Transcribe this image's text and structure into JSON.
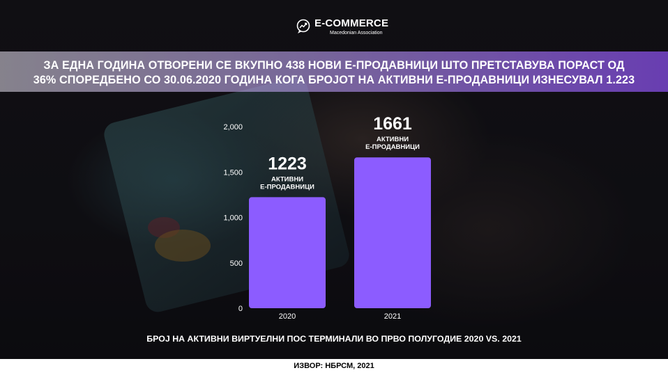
{
  "logo": {
    "title": "E-COMMERCE",
    "subtitle": "Macedonian Association",
    "icon": "chat-bubble-growth-icon"
  },
  "headline": {
    "line1": "ЗА ЕДНА ГОДИНА ОТВОРЕНИ СЕ ВКУПНО 438 НОВИ Е-ПРОДАВНИЦИ ШТО ПРЕТСТАВУВА ПОРАСТ ОД",
    "line2": "36% СПОРЕДБЕНО СО 30.06.2020 ГОДИНА КОГА БРОЈОТ НА АКТИВНИ Е-ПРОДАВНИЦИ ИЗНЕСУВАЛ 1.223"
  },
  "chart_data": {
    "type": "bar",
    "categories": [
      "2020",
      "2021"
    ],
    "values": [
      1223,
      1661
    ],
    "value_labels": [
      "1223",
      "1661"
    ],
    "bar_captions": [
      [
        "АКТИВНИ",
        "Е-ПРОДАВНИЦИ"
      ],
      [
        "АКТИВНИ",
        "Е-ПРОДАВНИЦИ"
      ]
    ],
    "ylim": [
      0,
      2000
    ],
    "yticks": [
      0,
      500,
      1000,
      1500,
      2000
    ],
    "ytick_labels": [
      "0",
      "500",
      "1,000",
      "1,500",
      "2,000"
    ],
    "grid": false,
    "bar_color": "#8c5cff",
    "title": "",
    "xlabel": "",
    "ylabel": ""
  },
  "caption": "БРОЈ НА АКТИВНИ ВИРТУЕЛНИ ПОС ТЕРМИНАЛИ ВО ПРВО ПОЛУГОДИЕ 2020 VS. 2021",
  "source": "ИЗВОР: НБРСМ, 2021",
  "colors": {
    "accent": "#8c5cff",
    "banner_end": "#7846cd",
    "text": "#ffffff"
  }
}
